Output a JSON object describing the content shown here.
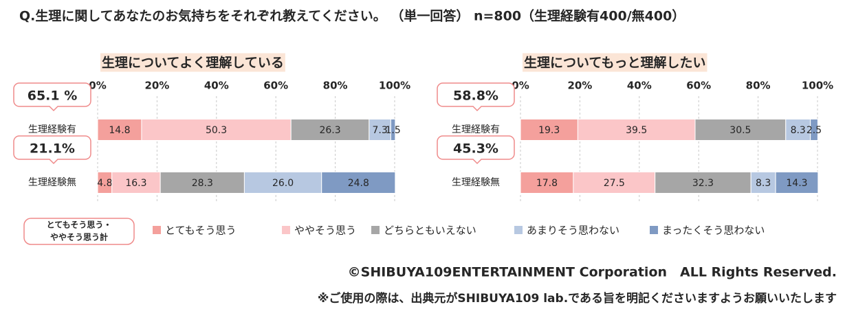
{
  "header": {
    "title": "Q.生理に関してあなたのお気持ちをそれぞれ教えてください。 （単一回答） n=800（生理経験有400/無400）"
  },
  "legend": {
    "note": [
      "とてもそう思う・",
      "ややそう思う計"
    ],
    "items": [
      {
        "name": "とてもそう思う",
        "color": "#f4a09c"
      },
      {
        "name": "ややそう思う",
        "color": "#fbc6c8"
      },
      {
        "name": "どちらともいえない",
        "color": "#a6a6a6"
      },
      {
        "name": "あまりそう思わない",
        "color": "#b7c8e1"
      },
      {
        "name": "まったくそう思わない",
        "color": "#7f9ac3"
      }
    ]
  },
  "chart_data": [
    {
      "type": "stacked-bar",
      "title": "生理についてよく理解している",
      "categories": [
        "生理経験有",
        "生理経験無"
      ],
      "callouts": [
        "65.1 %",
        "21.1%"
      ],
      "xlim": [
        0,
        100
      ],
      "xticks": [
        {
          "value": 0,
          "label": "0%"
        },
        {
          "value": 20,
          "label": "20%"
        },
        {
          "value": 40,
          "label": "40%"
        },
        {
          "value": 60,
          "label": "60%"
        },
        {
          "value": 80,
          "label": "80%"
        },
        {
          "value": 100,
          "label": "100%"
        }
      ],
      "grid": true,
      "series": [
        {
          "values": [
            14.8,
            4.8
          ]
        },
        {
          "values": [
            50.3,
            16.3
          ]
        },
        {
          "values": [
            26.3,
            28.3
          ]
        },
        {
          "values": [
            7.3,
            26.0
          ],
          "value_labels": [
            "7.3",
            "26.0"
          ]
        },
        {
          "values": [
            1.5,
            24.8
          ]
        }
      ]
    },
    {
      "type": "stacked-bar",
      "title": "生理についてもっと理解したい",
      "categories": [
        "生理経験有",
        "生理経験無"
      ],
      "callouts": [
        "58.8%",
        "45.3%"
      ],
      "xlim": [
        0,
        100
      ],
      "xticks": [
        {
          "value": 0,
          "label": "0%"
        },
        {
          "value": 20,
          "label": "20%"
        },
        {
          "value": 40,
          "label": "40%"
        },
        {
          "value": 60,
          "label": "60%"
        },
        {
          "value": 80,
          "label": "80%"
        },
        {
          "value": 100,
          "label": "100%"
        }
      ],
      "grid": true,
      "series": [
        {
          "values": [
            19.3,
            17.8
          ]
        },
        {
          "values": [
            39.5,
            27.5
          ]
        },
        {
          "values": [
            30.5,
            32.3
          ]
        },
        {
          "values": [
            8.3,
            8.3
          ]
        },
        {
          "values": [
            2.5,
            14.3
          ]
        }
      ]
    }
  ],
  "footer": {
    "copyright": "©SHIBUYA109ENTERTAINMENT Corporation　ALL Rights Reserved.",
    "note": "※ご使用の際は、出典元がSHIBUYA109 lab.である旨を明記くださいますようお願いいたします"
  }
}
